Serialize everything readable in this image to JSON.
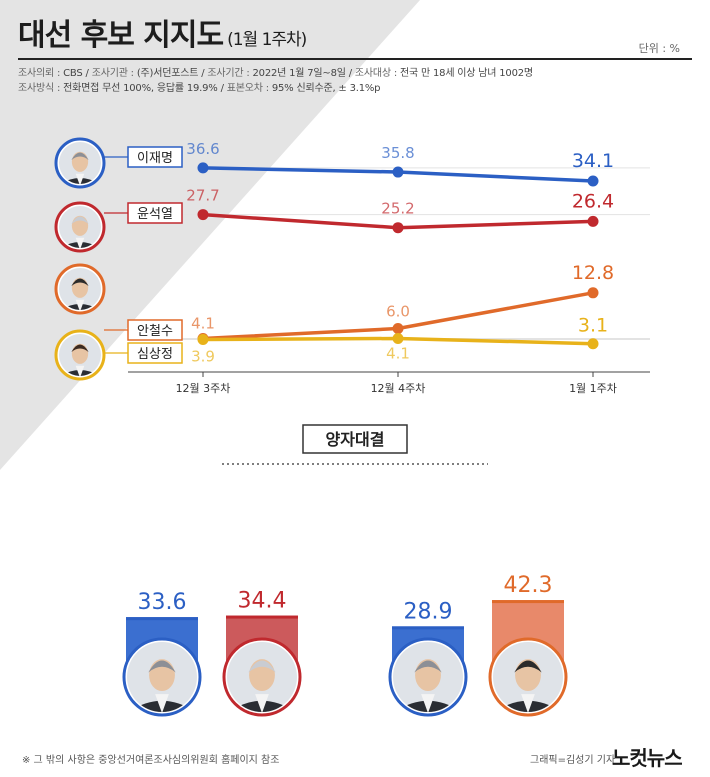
{
  "header": {
    "title": "대선 후보 지지도",
    "subtitle": "(1월 1주차)",
    "unit": "단위 : %",
    "meta_line1_label1": "조사의뢰 : ",
    "meta_line1_val1": "CBS / ",
    "meta_line1_label2": "조사기관 : ",
    "meta_line1_val2": "(주)서던포스트 / ",
    "meta_line1_label3": "조사기간 : ",
    "meta_line1_val3": "2022년 1월 7일~8일 / ",
    "meta_line1_label4": "조사대상 : ",
    "meta_line1_val4": "전국 만 18세 이상 남녀 1002명",
    "meta_line2_label1": "조사방식 : ",
    "meta_line2_val1": "전화면접 무선 100%, 응답률 19.9% / ",
    "meta_line2_label2": "표본오차 : ",
    "meta_line2_val2": "95% 신뢰수준, ± 3.1%p"
  },
  "colors": {
    "lee": "#2b5fc4",
    "yoon": "#c0292e",
    "ahn": "#e06a2a",
    "sim": "#e8b21a",
    "lee_bar": "#3b6fd0",
    "yoon_bar": "#cc5a5c",
    "ahn_bar": "#e8896a"
  },
  "chart_data": [
    {
      "type": "line",
      "categories": [
        "12월 3주차",
        "12월 4주차",
        "1월 1주차"
      ],
      "series": [
        {
          "name": "이재명",
          "color": "#2b5fc4",
          "values": [
            36.6,
            35.8,
            34.1
          ]
        },
        {
          "name": "윤석열",
          "color": "#c0292e",
          "values": [
            27.7,
            25.2,
            26.4
          ]
        },
        {
          "name": "안철수",
          "color": "#e06a2a",
          "values": [
            4.1,
            6.0,
            12.8
          ]
        },
        {
          "name": "심상정",
          "color": "#e8b21a",
          "values": [
            3.9,
            4.1,
            3.1
          ]
        }
      ],
      "labels": {
        "이재명": [
          "36.6",
          "35.8",
          "34.1"
        ],
        "윤석열": [
          "27.7",
          "25.2",
          "26.4"
        ],
        "안철수": [
          "4.1",
          "6.0",
          "12.8"
        ],
        "심상정": [
          "3.9",
          "4.1",
          "3.1"
        ]
      },
      "ylim": [
        0,
        40
      ],
      "legend": "left"
    },
    {
      "type": "bar",
      "title": "양자대결",
      "groups": [
        {
          "bars": [
            {
              "candidate": "이재명",
              "value": 33.6,
              "label": "33.6",
              "color": "#3b6fd0",
              "border": "#2b5fc4"
            },
            {
              "candidate": "윤석열",
              "value": 34.4,
              "label": "34.4",
              "color": "#cc5a5c",
              "border": "#c0292e"
            }
          ]
        },
        {
          "bars": [
            {
              "candidate": "이재명",
              "value": 28.9,
              "label": "28.9",
              "color": "#3b6fd0",
              "border": "#2b5fc4"
            },
            {
              "candidate": "안철수",
              "value": 42.3,
              "label": "42.3",
              "color": "#e8896a",
              "border": "#e06a2a"
            }
          ]
        }
      ]
    }
  ],
  "footer": {
    "note": "※ 그 밖의 사항은 중앙선거여론조사심의위원회 홈페이지 참조",
    "credit": "그래픽=김성기 기자",
    "brand": "노컷뉴스"
  }
}
